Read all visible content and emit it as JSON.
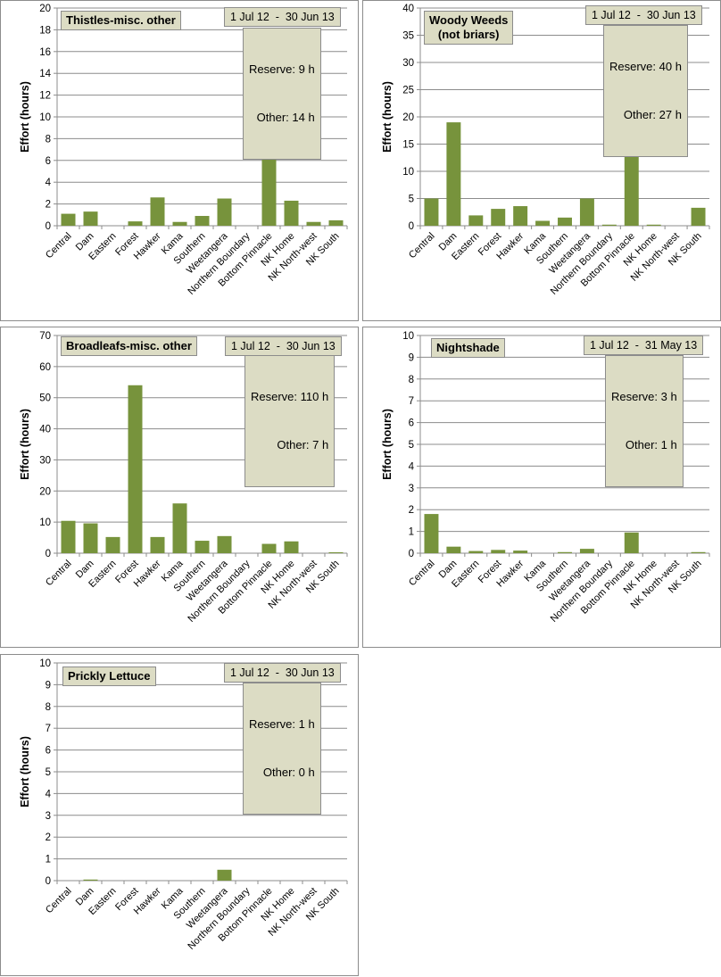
{
  "colors": {
    "bar": "#77933c",
    "grid": "#8c8c8c",
    "label_box": "#dcdcc4"
  },
  "chart_data": [
    {
      "type": "bar",
      "title": "Thistles-misc. other",
      "date_range": "1 Jul 12  -  30 Jun 13",
      "reserve_effort": "Reserve: 9 h",
      "other_effort": "Other: 14 h",
      "ylabel": "Effort  (hours)",
      "ylim": [
        0,
        20
      ],
      "yticks": [
        0,
        2,
        4,
        6,
        8,
        10,
        12,
        14,
        16,
        18,
        20
      ],
      "grid": true,
      "categories": [
        "Central",
        "Dam",
        "Eastern",
        "Forest",
        "Hawker",
        "Kama",
        "Southern",
        "Weetangera",
        "Northern Boundary",
        "Bottom Pinnacle",
        "NK Home",
        "NK North-west",
        "NK South"
      ],
      "values": [
        1.1,
        1.3,
        0,
        0.4,
        2.6,
        0.35,
        0.9,
        2.5,
        0,
        10.6,
        2.3,
        0.35,
        0.5
      ]
    },
    {
      "type": "bar",
      "title": "Woody Weeds\n(not briars)",
      "date_range": "1 Jul 12  -  30 Jun 13",
      "reserve_effort": "Reserve: 40 h",
      "other_effort": "Other: 27 h",
      "ylabel": "Effort  (hours)",
      "ylim": [
        0,
        40
      ],
      "yticks": [
        0,
        5,
        10,
        15,
        20,
        25,
        30,
        35,
        40
      ],
      "grid": true,
      "categories": [
        "Central",
        "Dam",
        "Eastern",
        "Forest",
        "Hawker",
        "Kama",
        "Southern",
        "Weetangera",
        "Northern Boundary",
        "Bottom Pinnacle",
        "NK Home",
        "NK North-west",
        "NK South"
      ],
      "values": [
        5.0,
        19.0,
        1.9,
        3.1,
        3.6,
        0.9,
        1.5,
        5.0,
        0.2,
        24.0,
        0.2,
        0,
        3.3
      ]
    },
    {
      "type": "bar",
      "title": "Broadleafs-misc. other",
      "date_range": "1 Jul 12  -  30 Jun 13",
      "reserve_effort": "Reserve: 110 h",
      "other_effort": "Other: 7 h",
      "ylabel": "Effort  (hours)",
      "ylim": [
        0,
        70
      ],
      "yticks": [
        0,
        10,
        20,
        30,
        40,
        50,
        60,
        70
      ],
      "grid": true,
      "categories": [
        "Central",
        "Dam",
        "Eastern",
        "Forest",
        "Hawker",
        "Kama",
        "Southern",
        "Weetangera",
        "Northern Boundary",
        "Bottom Pinnacle",
        "NK Home",
        "NK North-west",
        "NK South"
      ],
      "values": [
        10.4,
        9.6,
        5.2,
        54.0,
        5.2,
        16.0,
        4.0,
        5.5,
        0,
        3.0,
        3.8,
        0,
        0.3
      ]
    },
    {
      "type": "bar",
      "title": "Nightshade",
      "date_range": "1 Jul 12  -  31 May 13",
      "reserve_effort": "Reserve: 3 h",
      "other_effort": "Other: 1 h",
      "ylabel": "Effort  (hours)",
      "ylim": [
        0,
        10
      ],
      "yticks": [
        0,
        1,
        2,
        3,
        4,
        5,
        6,
        7,
        8,
        9,
        10
      ],
      "grid": true,
      "categories": [
        "Central",
        "Dam",
        "Eastern",
        "Forest",
        "Hawker",
        "Kama",
        "Southern",
        "Weetangera",
        "Northern Boundary",
        "Bottom Pinnacle",
        "NK Home",
        "NK North-west",
        "NK South"
      ],
      "values": [
        1.8,
        0.3,
        0.1,
        0.15,
        0.12,
        0,
        0.05,
        0.2,
        0,
        0.95,
        0,
        0,
        0.05
      ]
    },
    {
      "type": "bar",
      "title": "Prickly Lettuce",
      "date_range": "1 Jul 12  -  30 Jun 13",
      "reserve_effort": "Reserve: 1 h",
      "other_effort": "Other: 0 h",
      "ylabel": "Effort  (hours)",
      "ylim": [
        0,
        10
      ],
      "yticks": [
        0,
        1,
        2,
        3,
        4,
        5,
        6,
        7,
        8,
        9,
        10
      ],
      "grid": true,
      "categories": [
        "Central",
        "Dam",
        "Eastern",
        "Forest",
        "Hawker",
        "Kama",
        "Southern",
        "Weetangera",
        "Northern Boundary",
        "Bottom Pinnacle",
        "NK Home",
        "NK North-west",
        "NK South"
      ],
      "values": [
        0,
        0.05,
        0,
        0,
        0,
        0,
        0,
        0.5,
        0,
        0,
        0,
        0,
        0
      ]
    }
  ]
}
